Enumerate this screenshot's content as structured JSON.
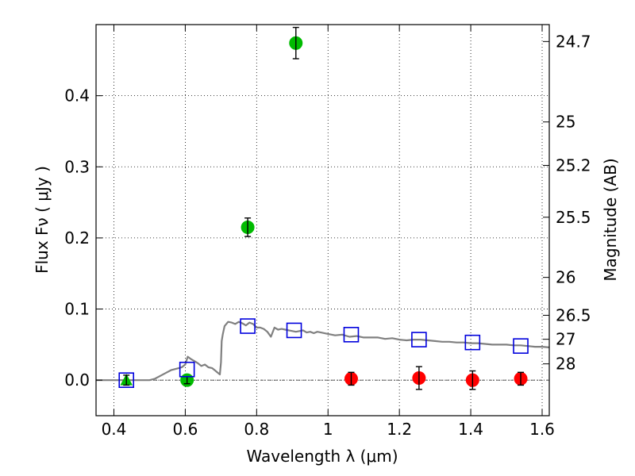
{
  "chart_data": {
    "type": "scatter",
    "title": "",
    "xlabel": "Wavelength  λ (μm)",
    "ylabel": "Flux  Fν  ( μJy )",
    "y2label": "Magnitude (AB)",
    "xlim": [
      0.35,
      1.62
    ],
    "ylim": [
      -0.05,
      0.5
    ],
    "grid": true,
    "grid_style": "dotted",
    "x_ticks": [
      0.4,
      0.6,
      0.8,
      1.0,
      1.2,
      1.4,
      1.6
    ],
    "x_tick_labels": [
      "0.4",
      "0.6",
      "0.8",
      "1",
      "1.2",
      "1.4",
      "1.6"
    ],
    "y_ticks": [
      0.0,
      0.1,
      0.2,
      0.3,
      0.4
    ],
    "y_tick_labels": [
      "0.0",
      "0.1",
      "0.2",
      "0.3",
      "0.4"
    ],
    "y2_tick_labels": [
      "24.7",
      "25",
      "25.2",
      "25.5",
      "26",
      "26.5",
      "27",
      "28"
    ],
    "y2_tick_flux": [
      0.4762,
      0.3631,
      0.302,
      0.2291,
      0.1445,
      0.0912,
      0.0575,
      0.0229
    ],
    "zero_line": true,
    "colors": {
      "detections": "#00bb00",
      "nondetections": "#ff0000",
      "model_photometry": "#0000dd",
      "sed": "#808080"
    },
    "series": [
      {
        "marker": "circle",
        "color": "#00bb00",
        "points": [
          {
            "x": 0.605,
            "y": 0.0,
            "err": 0.005
          },
          {
            "x": 0.775,
            "y": 0.215,
            "err": 0.013
          },
          {
            "x": 0.91,
            "y": 0.474,
            "err": 0.022
          }
        ]
      },
      {
        "marker": "triangle",
        "color": "#00bb00",
        "points": [
          {
            "x": 0.435,
            "y": 0.0,
            "err": 0.007
          }
        ]
      },
      {
        "marker": "circle",
        "color": "#ff0000",
        "points": [
          {
            "x": 1.065,
            "y": 0.002,
            "err": 0.009
          },
          {
            "x": 1.255,
            "y": 0.003,
            "err": 0.016
          },
          {
            "x": 1.405,
            "y": 0.0,
            "err": 0.013
          },
          {
            "x": 1.54,
            "y": 0.002,
            "err": 0.009
          }
        ]
      },
      {
        "marker": "square",
        "color": "#0000dd",
        "points": [
          {
            "x": 0.435,
            "y": 0.0
          },
          {
            "x": 0.605,
            "y": 0.015
          },
          {
            "x": 0.775,
            "y": 0.076
          },
          {
            "x": 0.905,
            "y": 0.07
          },
          {
            "x": 1.065,
            "y": 0.064
          },
          {
            "x": 1.255,
            "y": 0.057
          },
          {
            "x": 1.405,
            "y": 0.053
          },
          {
            "x": 1.54,
            "y": 0.048
          }
        ]
      },
      {
        "type": "line",
        "color": "#808080",
        "x": [
          0.35,
          0.5,
          0.515,
          0.53,
          0.545,
          0.56,
          0.575,
          0.59,
          0.6,
          0.607,
          0.615,
          0.625,
          0.635,
          0.645,
          0.655,
          0.665,
          0.675,
          0.685,
          0.692,
          0.697,
          0.7,
          0.702,
          0.705,
          0.71,
          0.72,
          0.73,
          0.74,
          0.75,
          0.76,
          0.77,
          0.78,
          0.79,
          0.8,
          0.81,
          0.82,
          0.83,
          0.84,
          0.85,
          0.86,
          0.87,
          0.88,
          0.89,
          0.9,
          0.91,
          0.92,
          0.93,
          0.94,
          0.95,
          0.96,
          0.97,
          0.98,
          1.0,
          1.02,
          1.04,
          1.06,
          1.08,
          1.1,
          1.12,
          1.14,
          1.16,
          1.18,
          1.2,
          1.22,
          1.24,
          1.26,
          1.28,
          1.3,
          1.32,
          1.34,
          1.36,
          1.38,
          1.4,
          1.42,
          1.44,
          1.46,
          1.48,
          1.5,
          1.52,
          1.54,
          1.56,
          1.58,
          1.6,
          1.62
        ],
        "y": [
          0.0,
          0.0,
          0.002,
          0.006,
          0.01,
          0.014,
          0.016,
          0.018,
          0.022,
          0.033,
          0.03,
          0.027,
          0.024,
          0.02,
          0.022,
          0.018,
          0.017,
          0.013,
          0.01,
          0.008,
          0.025,
          0.055,
          0.064,
          0.076,
          0.082,
          0.081,
          0.079,
          0.082,
          0.08,
          0.077,
          0.081,
          0.079,
          0.074,
          0.074,
          0.072,
          0.068,
          0.061,
          0.074,
          0.071,
          0.072,
          0.071,
          0.07,
          0.069,
          0.068,
          0.069,
          0.07,
          0.067,
          0.068,
          0.066,
          0.068,
          0.067,
          0.065,
          0.063,
          0.064,
          0.061,
          0.062,
          0.06,
          0.06,
          0.06,
          0.058,
          0.059,
          0.057,
          0.056,
          0.057,
          0.057,
          0.056,
          0.055,
          0.054,
          0.054,
          0.053,
          0.053,
          0.052,
          0.052,
          0.051,
          0.05,
          0.05,
          0.05,
          0.049,
          0.049,
          0.048,
          0.047,
          0.047,
          0.046
        ]
      }
    ]
  }
}
